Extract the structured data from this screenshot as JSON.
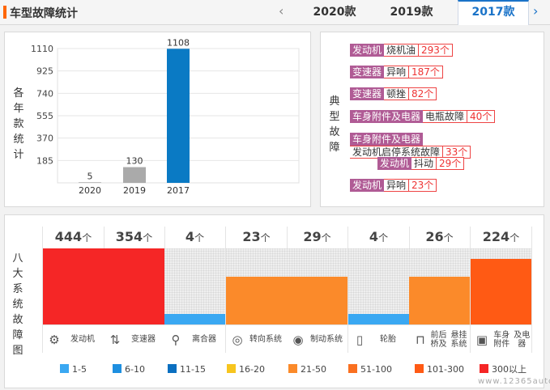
{
  "header": {
    "title": "车型故障统计",
    "prev_icon": "‹",
    "next_icon": "›",
    "tabs": [
      {
        "label": "2020款",
        "active": false
      },
      {
        "label": "2019款",
        "active": false
      },
      {
        "label": "2017款",
        "active": true
      }
    ]
  },
  "year_chart_label": "各年款统计",
  "chart_data": {
    "type": "bar",
    "categories": [
      "2020",
      "2019",
      "2017"
    ],
    "values": [
      5,
      130,
      1108
    ],
    "y_ticks": [
      185,
      370,
      555,
      740,
      925,
      1110
    ],
    "ylim": [
      0,
      1110
    ],
    "grid": true,
    "colors": [
      "#aaaaaa",
      "#aaaaaa",
      "#0a7ac4"
    ]
  },
  "faults_label": "典型故障",
  "faults": [
    {
      "parts": [
        "发动机",
        "烧机油"
      ],
      "count": "293个"
    },
    {
      "parts": [
        "变速器",
        "异响"
      ],
      "count": "187个"
    },
    {
      "parts": [
        "变速器",
        "顿挫"
      ],
      "count": "82个"
    },
    {
      "parts": [
        "车身附件及电器",
        "电瓶故障"
      ],
      "count": "40个"
    },
    {
      "parts": [
        "车身附件及电器",
        "发动机启停系统故障"
      ],
      "count": "33个"
    },
    {
      "parts": [
        "发动机",
        "抖动"
      ],
      "count": "29个"
    },
    {
      "parts": [
        "发动机",
        "异响"
      ],
      "count": "23个"
    }
  ],
  "systems_label": "八大系统故障图",
  "count_unit": "个",
  "systems": [
    {
      "name": "发动机",
      "count": 444,
      "level": 1.0,
      "color": "#f52626",
      "icon": "engine-icon",
      "glyph": "⚙"
    },
    {
      "name": "变速器",
      "count": 354,
      "level": 1.0,
      "color": "#f52626",
      "icon": "gearshift-icon",
      "glyph": "⇅"
    },
    {
      "name": "离合器",
      "count": 4,
      "level": 0.14,
      "color": "#3aa8f2",
      "icon": "clutch-icon",
      "glyph": "⚲"
    },
    {
      "name": "转向系统",
      "count": 23,
      "level": 0.63,
      "color": "#fb8a2a",
      "icon": "steering-wheel-icon",
      "glyph": "◎"
    },
    {
      "name": "制动系统",
      "count": 29,
      "level": 0.63,
      "color": "#fb8a2a",
      "icon": "brake-icon",
      "glyph": "◉"
    },
    {
      "name": "轮胎",
      "count": 4,
      "level": 0.14,
      "color": "#3aa8f2",
      "icon": "tire-icon",
      "glyph": "▯"
    },
    {
      "name": "前后桥及悬挂系统",
      "count": 26,
      "level": 0.63,
      "color": "#fb8a2a",
      "icon": "suspension-icon",
      "glyph": "⊓"
    },
    {
      "name": "车身附件及电器",
      "count": 224,
      "level": 0.86,
      "color": "#ff5a14",
      "icon": "battery-icon",
      "glyph": "▣"
    }
  ],
  "legend": [
    {
      "label": "1-5",
      "color": "#3aa8f2"
    },
    {
      "label": "6-10",
      "color": "#1e8fe0"
    },
    {
      "label": "11-15",
      "color": "#0a6fc0"
    },
    {
      "label": "16-20",
      "color": "#f7c51e"
    },
    {
      "label": "21-50",
      "color": "#fb8a2a"
    },
    {
      "label": "51-100",
      "color": "#fa7020"
    },
    {
      "label": "101-300",
      "color": "#ff5a14"
    },
    {
      "label": "300以上",
      "color": "#f52626"
    }
  ]
}
